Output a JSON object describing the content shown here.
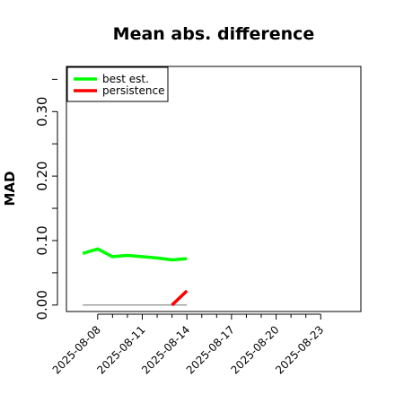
{
  "chart_data": {
    "type": "line",
    "title": "Mean abs. difference",
    "xlabel": "",
    "ylabel": "MAD",
    "ylim": [
      -0.01,
      0.37
    ],
    "y_ticks": [
      "0.00",
      "0.10",
      "0.20",
      "0.30"
    ],
    "y_tick_values": [
      0.0,
      0.1,
      0.2,
      0.3
    ],
    "x_tick_labels": [
      "2025-08-08",
      "2025-08-11",
      "2025-08-14",
      "2025-08-17",
      "2025-08-20",
      "2025-08-23"
    ],
    "x_tick_days": [
      8,
      11,
      14,
      17,
      20,
      23
    ],
    "x_range_days": [
      5.9,
      25.7
    ],
    "legend_position": "top-left",
    "grid": false,
    "reference_line": {
      "y": 0.0,
      "x_from_day": 7,
      "x_to_day": 14,
      "color": "#808080"
    },
    "series": [
      {
        "name": "best est.",
        "color": "#00ff00",
        "x_days": [
          7,
          8,
          9,
          10,
          11,
          12,
          13,
          14
        ],
        "values": [
          0.08,
          0.087,
          0.075,
          0.077,
          0.075,
          0.073,
          0.07,
          0.072
        ]
      },
      {
        "name": "persistence",
        "color": "#ff0000",
        "x_days": [
          13,
          14
        ],
        "values": [
          0.0,
          0.022
        ]
      }
    ]
  }
}
